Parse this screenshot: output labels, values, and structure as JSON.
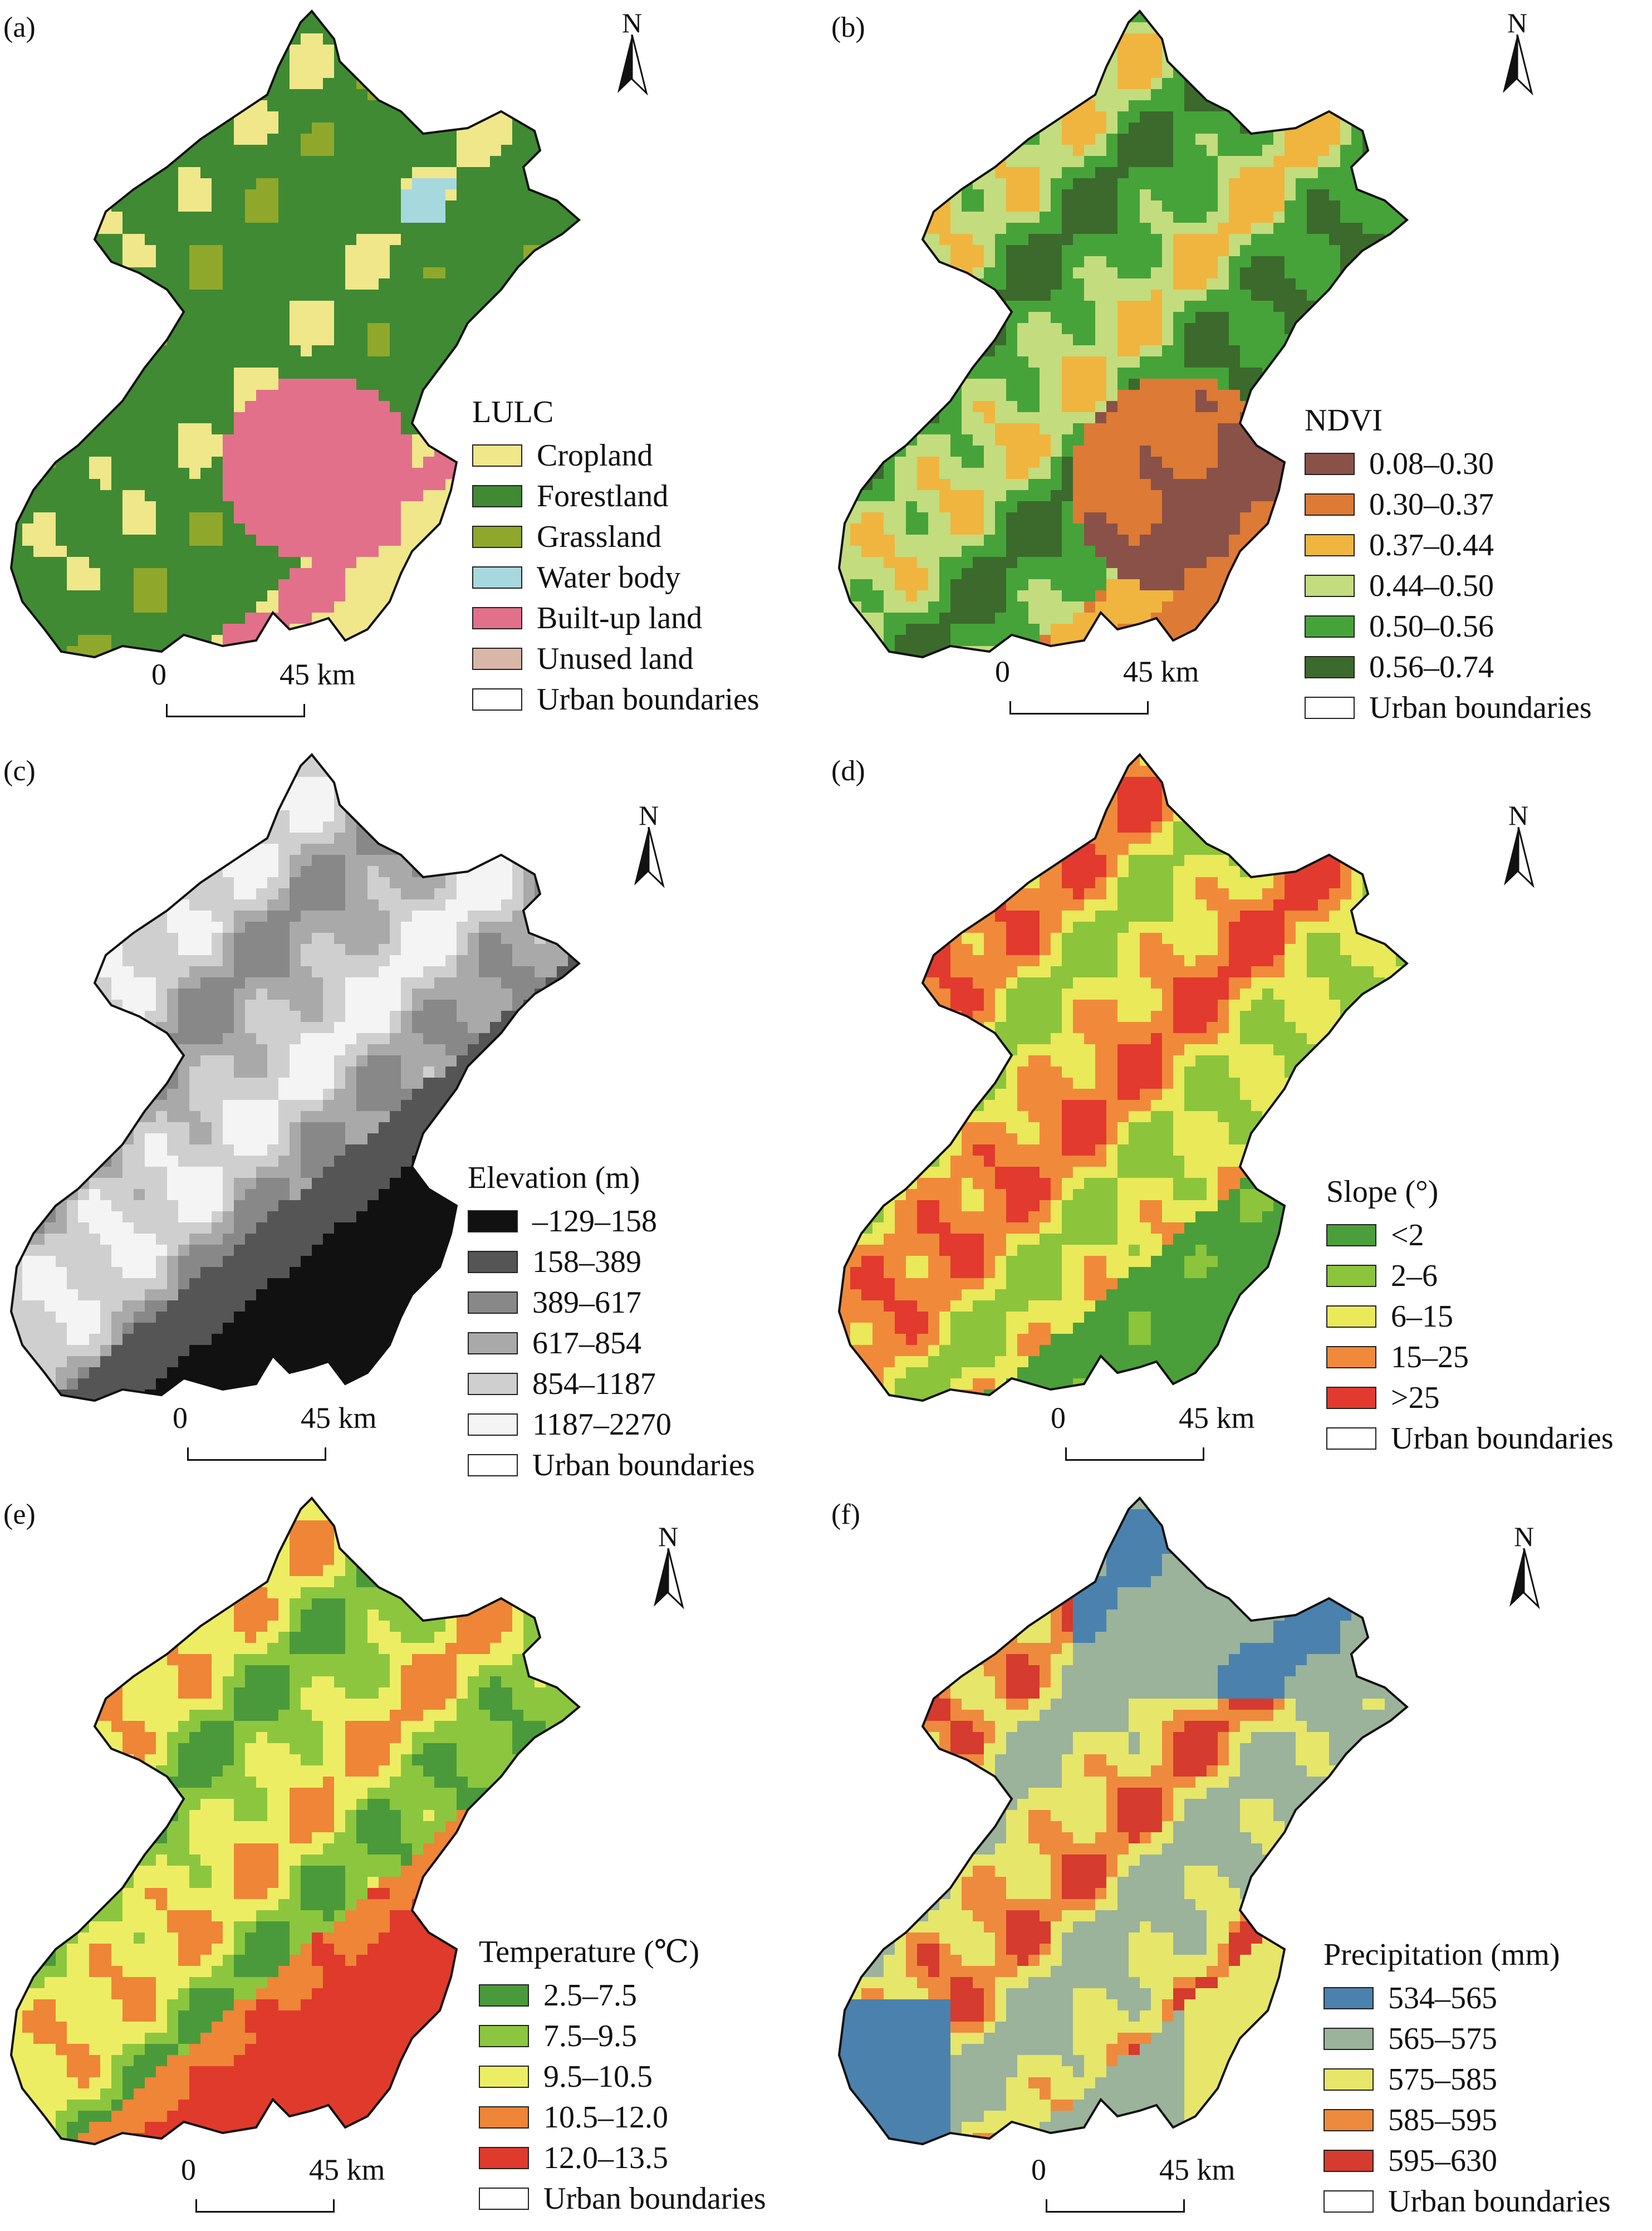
{
  "north_label": "N",
  "scale": {
    "zero": "0",
    "distance": "45 km"
  },
  "boundary_label": "Urban boundaries",
  "boundary_color": "#ffffff",
  "panels": [
    {
      "id": "a",
      "label": "(a)",
      "legend_title": "LULC",
      "classes": [
        {
          "label": "Cropland",
          "color": "#efe78a"
        },
        {
          "label": "Forestland",
          "color": "#3f8a33"
        },
        {
          "label": "Grassland",
          "color": "#8fa82b"
        },
        {
          "label": "Water body",
          "color": "#a6d8dd"
        },
        {
          "label": "Built-up land",
          "color": "#e2708a"
        },
        {
          "label": "Unused land",
          "color": "#d9b7a8"
        }
      ]
    },
    {
      "id": "b",
      "label": "(b)",
      "legend_title": "NDVI",
      "classes": [
        {
          "label": "0.08–0.30",
          "color": "#8a5148"
        },
        {
          "label": "0.30–0.37",
          "color": "#dd7a35"
        },
        {
          "label": "0.37–0.44",
          "color": "#f0b53e"
        },
        {
          "label": "0.44–0.50",
          "color": "#c3dc7e"
        },
        {
          "label": "0.50–0.56",
          "color": "#46a339"
        },
        {
          "label": "0.56–0.74",
          "color": "#3b6a2c"
        }
      ]
    },
    {
      "id": "c",
      "label": "(c)",
      "legend_title": "Elevation (m)",
      "classes": [
        {
          "label": "–129–158",
          "color": "#111111"
        },
        {
          "label": "158–389",
          "color": "#555555"
        },
        {
          "label": "389–617",
          "color": "#888888"
        },
        {
          "label": "617–854",
          "color": "#a9a9a9"
        },
        {
          "label": "854–1187",
          "color": "#cfcfcf"
        },
        {
          "label": "1187–2270",
          "color": "#f4f4f4"
        }
      ]
    },
    {
      "id": "d",
      "label": "(d)",
      "legend_title": "Slope (°)",
      "classes": [
        {
          "label": "<2",
          "color": "#4a9f3a"
        },
        {
          "label": "2–6",
          "color": "#8cc43b"
        },
        {
          "label": "6–15",
          "color": "#e9e95a"
        },
        {
          "label": "15–25",
          "color": "#f08a3a"
        },
        {
          "label": ">25",
          "color": "#e23a2e"
        }
      ]
    },
    {
      "id": "e",
      "label": "(e)",
      "legend_title": "Temperature (℃)",
      "classes": [
        {
          "label": "2.5–7.5",
          "color": "#4a9a3b"
        },
        {
          "label": "7.5–9.5",
          "color": "#8cc63f"
        },
        {
          "label": "9.5–10.5",
          "color": "#eded63"
        },
        {
          "label": "10.5–12.0",
          "color": "#ee8537"
        },
        {
          "label": "12.0–13.5",
          "color": "#df3a2c"
        }
      ]
    },
    {
      "id": "f",
      "label": "(f)",
      "legend_title": "Precipitation (mm)",
      "classes": [
        {
          "label": "534–565",
          "color": "#4b81ad"
        },
        {
          "label": "565–575",
          "color": "#9ab39a"
        },
        {
          "label": "575–585",
          "color": "#e6e66a"
        },
        {
          "label": "585–595",
          "color": "#ee8a3d"
        },
        {
          "label": "595–630",
          "color": "#d53b2e"
        }
      ]
    }
  ]
}
